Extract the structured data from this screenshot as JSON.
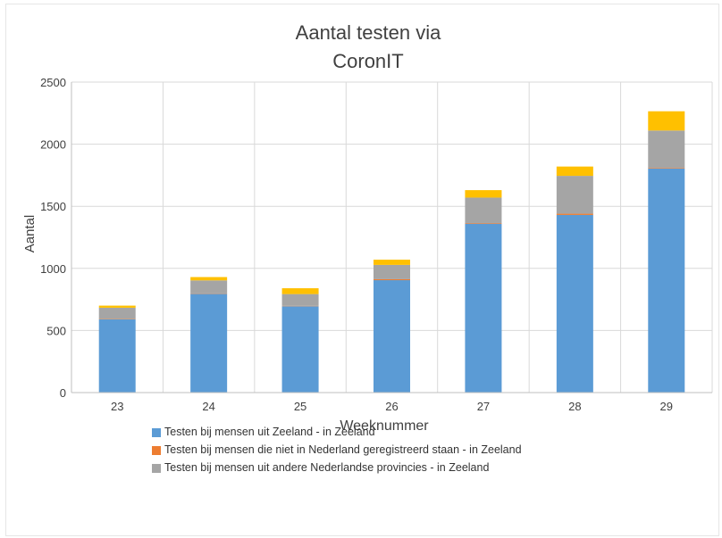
{
  "chart_data": {
    "type": "bar",
    "stacked": true,
    "title": "Aantal  testen  via\nCoronIT",
    "xlabel": "Weeknummer",
    "ylabel": "Aantal",
    "categories": [
      "23",
      "24",
      "25",
      "26",
      "27",
      "28",
      "29"
    ],
    "ylim": [
      0,
      2500
    ],
    "yticks": [
      0,
      500,
      1000,
      1500,
      2000,
      2500
    ],
    "grid": true,
    "legend_position": "bottom",
    "series": [
      {
        "name": "Testen bij mensen uit Zeeland - in Zeeland",
        "color": "#5b9bd5",
        "values": [
          590,
          795,
          695,
          905,
          1360,
          1430,
          1805
        ]
      },
      {
        "name": "Testen bij mensen die niet in Nederland geregistreerd staan - in Zeeland",
        "color": "#ed7d31",
        "values": [
          3,
          3,
          3,
          8,
          5,
          10,
          5
        ]
      },
      {
        "name": "Testen bij mensen uit andere Nederlandse provincies - in Zeeland",
        "color": "#a5a5a5",
        "values": [
          90,
          105,
          95,
          115,
          205,
          305,
          300
        ]
      },
      {
        "name": "",
        "color": "#ffc000",
        "values": [
          17,
          27,
          47,
          42,
          60,
          75,
          155
        ]
      }
    ]
  }
}
